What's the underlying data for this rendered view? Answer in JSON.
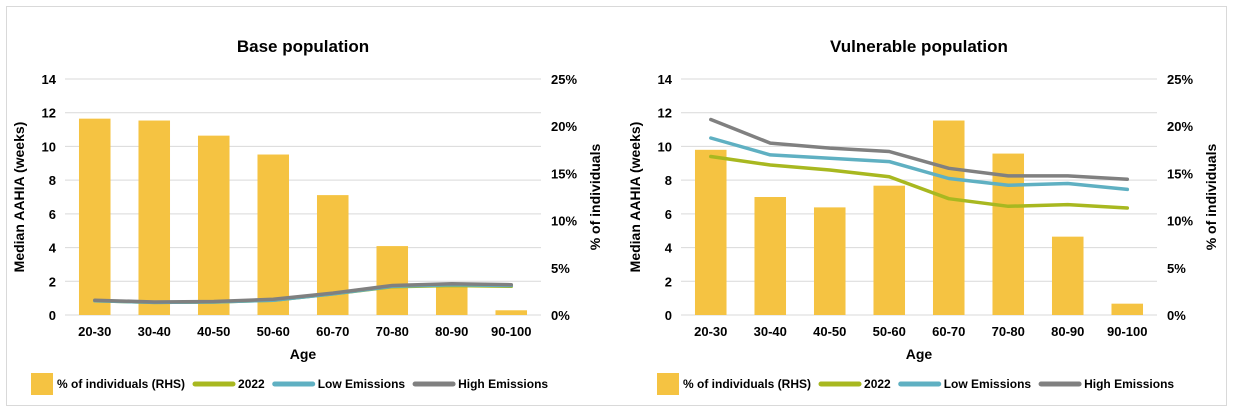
{
  "colors": {
    "bar": "#f5c342",
    "2022": "#a8b820",
    "low": "#5fb0c2",
    "high": "#808080",
    "grid": "#d9d9d9"
  },
  "chart_data": [
    {
      "type": "bar+line",
      "title": "Base population",
      "xlabel": "Age",
      "ylabel": "Median AAHIA (weeks)",
      "y2label": "% of individuals",
      "categories": [
        "20-30",
        "30-40",
        "40-50",
        "50-60",
        "60-70",
        "70-80",
        "80-90",
        "90-100"
      ],
      "ylim": [
        0,
        14
      ],
      "yticks": [
        "0",
        "2",
        "4",
        "6",
        "8",
        "10",
        "12",
        "14"
      ],
      "y2lim": [
        0,
        25
      ],
      "y2ticks": [
        "0%",
        "5%",
        "10%",
        "15%",
        "20%",
        "25%"
      ],
      "grid": true,
      "legend_position": "bottom",
      "bars": {
        "name": "% of individuals (RHS)",
        "values": [
          20.8,
          20.6,
          19.0,
          17.0,
          12.7,
          7.3,
          3.0,
          0.5
        ]
      },
      "series": [
        {
          "name": "2022",
          "key": "2022",
          "values": [
            0.85,
            0.75,
            0.77,
            0.88,
            1.25,
            1.68,
            1.75,
            1.7
          ]
        },
        {
          "name": "Low Emissions",
          "key": "low",
          "values": [
            0.85,
            0.75,
            0.77,
            0.88,
            1.25,
            1.7,
            1.8,
            1.75
          ]
        },
        {
          "name": "High Emissions",
          "key": "high",
          "values": [
            0.88,
            0.77,
            0.8,
            0.93,
            1.3,
            1.75,
            1.85,
            1.8
          ]
        }
      ]
    },
    {
      "type": "bar+line",
      "title": "Vulnerable population",
      "xlabel": "Age",
      "ylabel": "Median AAHIA (weeks)",
      "y2label": "% of individuals",
      "categories": [
        "20-30",
        "30-40",
        "40-50",
        "50-60",
        "60-70",
        "70-80",
        "80-90",
        "90-100"
      ],
      "ylim": [
        0,
        14
      ],
      "yticks": [
        "0",
        "2",
        "4",
        "6",
        "8",
        "10",
        "12",
        "14"
      ],
      "y2lim": [
        0,
        25
      ],
      "y2ticks": [
        "0%",
        "5%",
        "10%",
        "15%",
        "20%",
        "25%"
      ],
      "grid": true,
      "legend_position": "bottom",
      "bars": {
        "name": "% of individuals (RHS)",
        "values": [
          17.5,
          12.5,
          11.4,
          13.7,
          20.6,
          17.1,
          8.3,
          1.2
        ]
      },
      "series": [
        {
          "name": "2022",
          "key": "2022",
          "values": [
            9.4,
            8.9,
            8.6,
            8.2,
            6.9,
            6.45,
            6.55,
            6.35
          ]
        },
        {
          "name": "Low Emissions",
          "key": "low",
          "values": [
            10.5,
            9.5,
            9.3,
            9.1,
            8.1,
            7.7,
            7.8,
            7.45
          ]
        },
        {
          "name": "High Emissions",
          "key": "high",
          "values": [
            11.6,
            10.2,
            9.9,
            9.7,
            8.7,
            8.25,
            8.25,
            8.05
          ]
        }
      ]
    }
  ]
}
